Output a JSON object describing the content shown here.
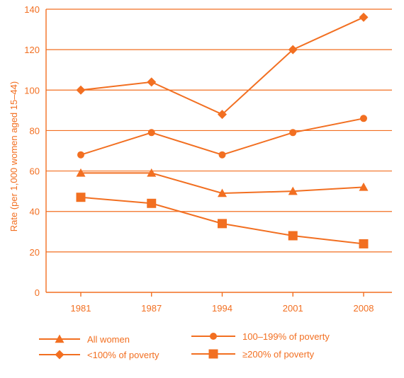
{
  "chart_data": {
    "type": "line",
    "title": "",
    "xlabel": "",
    "ylabel": "Rate (per 1,000 women aged 15–44)",
    "categories": [
      "1981",
      "1987",
      "1994",
      "2001",
      "2008"
    ],
    "ylim": [
      0,
      140
    ],
    "yticks": [
      0,
      20,
      40,
      60,
      80,
      100,
      120,
      140
    ],
    "grid": true,
    "legend_position": "bottom",
    "color": "#f26f21",
    "series": [
      {
        "name": "<100% of poverty",
        "marker": "diamond",
        "values": [
          100,
          104,
          88,
          120,
          136
        ]
      },
      {
        "name": "100–199% of poverty",
        "marker": "circle",
        "values": [
          68,
          79,
          68,
          79,
          86
        ]
      },
      {
        "name": "All women",
        "marker": "triangle",
        "values": [
          59,
          59,
          49,
          50,
          52
        ]
      },
      {
        "name": "≥200% of poverty",
        "marker": "square",
        "values": [
          47,
          44,
          34,
          28,
          24
        ]
      }
    ],
    "legend_order": [
      "All women",
      "100–199% of poverty",
      "<100% of poverty",
      "≥200% of poverty"
    ]
  }
}
